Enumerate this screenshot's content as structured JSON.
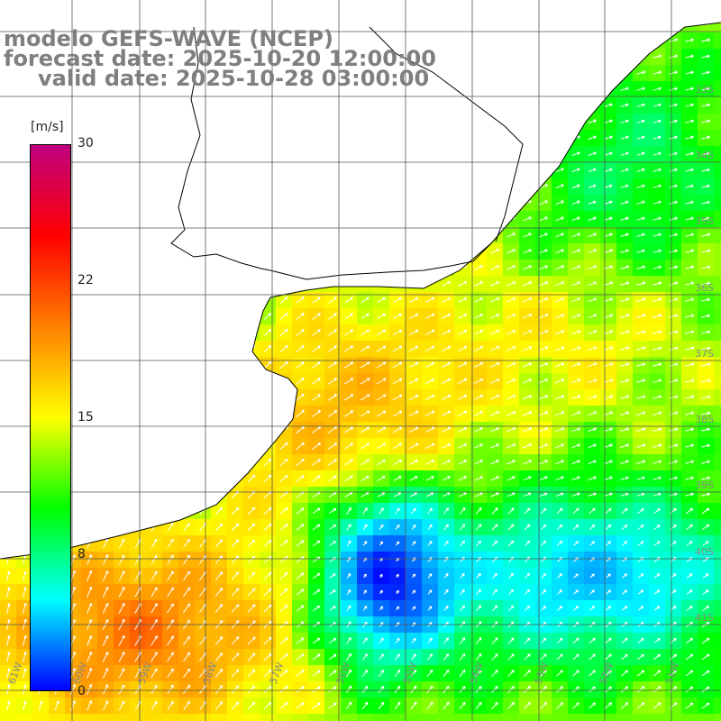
{
  "title": {
    "line1": "modelo GEFS-WAVE (NCEP)",
    "line2": "forecast date: 2025-10-20 12:00:00",
    "line3": "valid date: 2025-10-28 03:00:00"
  },
  "colorbar": {
    "unit": "[m/s]",
    "ticks": [
      "30",
      "22",
      "15",
      "8",
      "0"
    ],
    "tick_values": [
      30,
      22,
      15,
      8,
      0
    ],
    "colors": [
      "#0000ff",
      "#00ffff",
      "#00ff00",
      "#ffff00",
      "#ff8000",
      "#ff0000",
      "#c00080"
    ]
  },
  "map": {
    "lat_labels": [
      "33S",
      "34S",
      "35S",
      "36S",
      "37S",
      "38S",
      "39S",
      "40S",
      "41S"
    ],
    "lon_labels": [
      "61W",
      "60W",
      "59W",
      "58W",
      "57W",
      "56W",
      "55W",
      "54W",
      "53W",
      "52W",
      "51W"
    ],
    "land_color": "#ffffff",
    "grid_color": "#555555"
  }
}
